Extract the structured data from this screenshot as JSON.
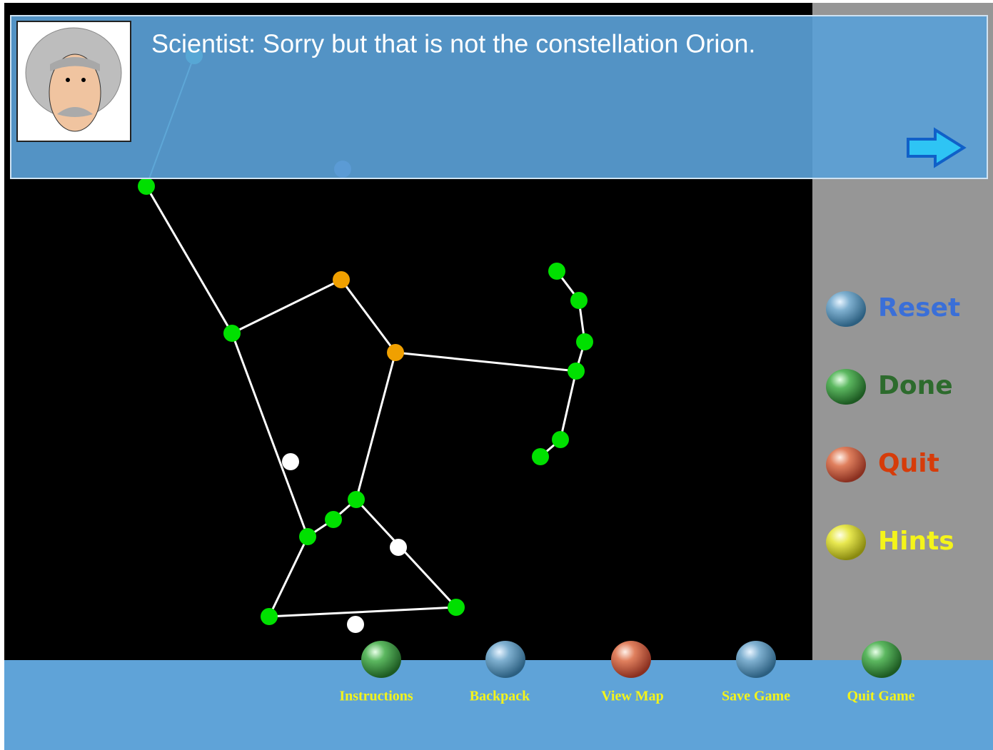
{
  "dialog": {
    "text": "Scientist: Sorry but that is not the constellation Orion."
  },
  "side_buttons": [
    "Reset",
    "Done",
    "Quit",
    "Hints"
  ],
  "bottom_buttons": [
    "Instructions",
    "Backpack",
    "View Map",
    "Save Game",
    "Quit Game"
  ]
}
